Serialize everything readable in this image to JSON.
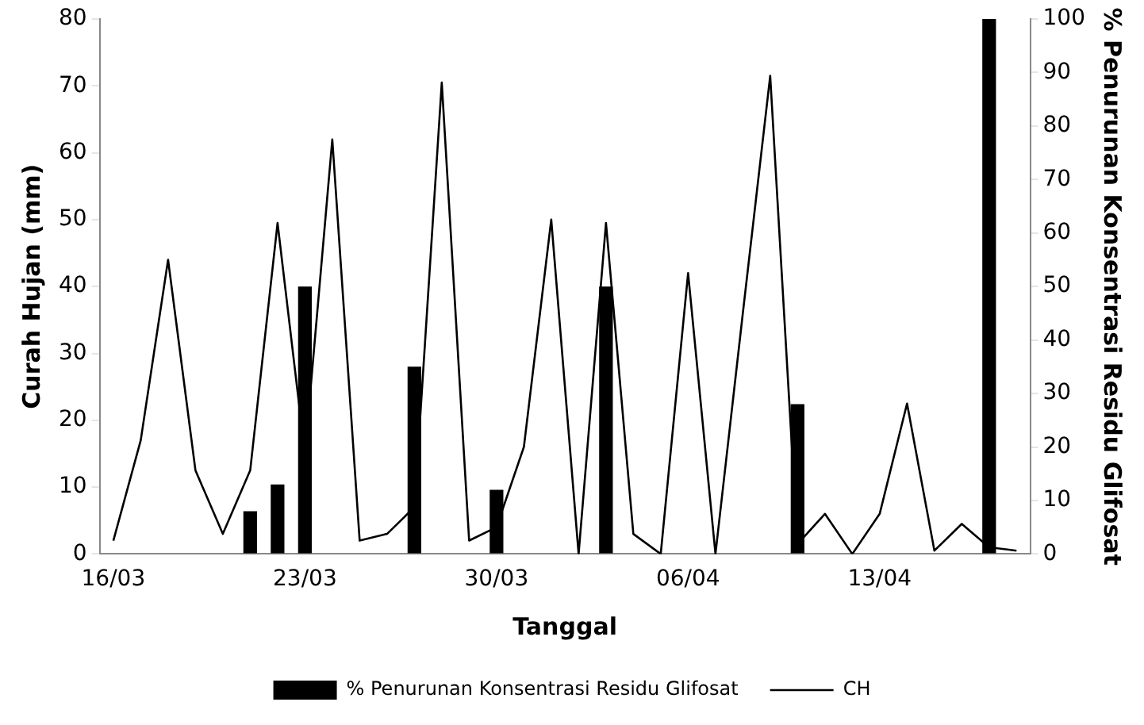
{
  "chart_data": {
    "type": "bar",
    "xlabel": "Tanggal",
    "ylabel": "Curah Hujan (mm)",
    "y2label": "% Penurunan Konsentrasi Residu Glifosat",
    "categories": [
      "16/03",
      null,
      null,
      null,
      null,
      null,
      null,
      "23/03",
      null,
      null,
      null,
      null,
      null,
      null,
      "30/03",
      null,
      null,
      null,
      null,
      null,
      null,
      "06/04",
      null,
      null,
      null,
      null,
      null,
      null,
      "13/04",
      null,
      null,
      null,
      null,
      null
    ],
    "series": [
      {
        "name": "% Penurunan Konsentrasi Residu Glifosat",
        "axis": "y2",
        "color": "#000000",
        "values": [
          null,
          null,
          null,
          null,
          null,
          8,
          13,
          50,
          null,
          null,
          null,
          35,
          null,
          null,
          12,
          null,
          null,
          null,
          50,
          null,
          null,
          null,
          null,
          null,
          null,
          28,
          null,
          null,
          null,
          null,
          null,
          null,
          100,
          null
        ]
      },
      {
        "name": "CH",
        "type": "line",
        "color": "#000000",
        "values": [
          2,
          17,
          44,
          12.5,
          3,
          12.5,
          49.5,
          15,
          62,
          2,
          3,
          7,
          70.5,
          2,
          4,
          16,
          50,
          0,
          49.5,
          3,
          0,
          42,
          0,
          36,
          71.5,
          1.5,
          6,
          0,
          6,
          22.5,
          0.5,
          4.5,
          1,
          0.5
        ]
      }
    ],
    "ylim": [
      0,
      80
    ],
    "yticks": [
      0,
      10,
      20,
      30,
      40,
      50,
      60,
      70,
      80
    ],
    "y2lim": [
      0,
      100
    ],
    "y2ticks": [
      0,
      10,
      20,
      30,
      40,
      50,
      60,
      70,
      80,
      90,
      100
    ],
    "grid": false,
    "legend": "bottom",
    "marker": "none",
    "line_style": "solid"
  }
}
